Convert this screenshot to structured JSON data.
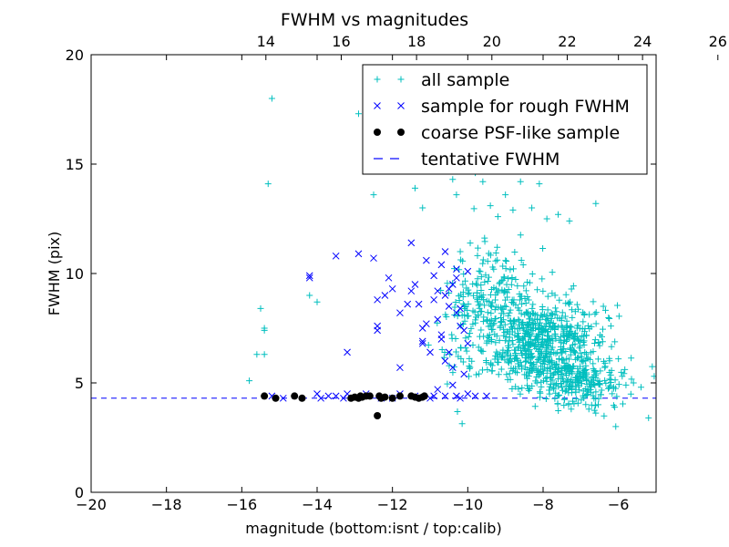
{
  "chart_data": {
    "type": "scatter",
    "title": "FWHM vs magnitudes",
    "xlabel": "magnitude (bottom:isnt / top:calib)",
    "ylabel": "FWHM (pix)",
    "xlim": [
      -20,
      -5
    ],
    "ylim": [
      0,
      20
    ],
    "xticks": [
      -20,
      -18,
      -16,
      -14,
      -12,
      -10,
      -8,
      -6
    ],
    "xtick_labels": [
      "−20",
      "−18",
      "−16",
      "−14",
      "−12",
      "−10",
      "−8",
      "−6"
    ],
    "yticks": [
      0,
      5,
      10,
      15,
      20
    ],
    "ytick_labels": [
      "0",
      "5",
      "10",
      "15",
      "20"
    ],
    "top_axis": {
      "offset": 29.36,
      "ticks": [
        14,
        16,
        18,
        20,
        22,
        24,
        26
      ],
      "tick_labels": [
        "14",
        "16",
        "18",
        "20",
        "22",
        "24",
        "26"
      ]
    },
    "grid": false,
    "legend_position": "top-right",
    "series": [
      {
        "name": "all sample",
        "marker": "plus",
        "color": "#00bfbf",
        "points": [
          [
            -15.8,
            5.1
          ],
          [
            -15.6,
            6.3
          ],
          [
            -15.5,
            8.4
          ],
          [
            -15.4,
            7.5
          ],
          [
            -15.4,
            7.4
          ],
          [
            -15.4,
            6.3
          ],
          [
            -15.3,
            14.1
          ],
          [
            -15.2,
            18.0
          ],
          [
            -14.2,
            9.0
          ],
          [
            -14.0,
            8.7
          ],
          [
            -12.9,
            17.3
          ],
          [
            -12.5,
            13.6
          ],
          [
            -11.4,
            13.9
          ],
          [
            -11.2,
            13.0
          ],
          [
            -10.4,
            14.3
          ],
          [
            -10.3,
            13.6
          ],
          [
            -10.2,
            11.0
          ],
          [
            -9.8,
            14.6
          ],
          [
            -9.6,
            14.2
          ],
          [
            -9.4,
            13.1
          ],
          [
            -9.2,
            12.6
          ],
          [
            -9.0,
            13.6
          ],
          [
            -8.8,
            12.9
          ],
          [
            -8.6,
            14.2
          ],
          [
            -8.3,
            13.0
          ],
          [
            -8.1,
            14.1
          ],
          [
            -7.9,
            12.5
          ],
          [
            -7.6,
            12.7
          ],
          [
            -7.3,
            12.4
          ],
          [
            -6.6,
            13.2
          ],
          [
            -6.4,
            8.5
          ],
          [
            -6.2,
            7.6
          ],
          [
            -5.9,
            5.3
          ],
          [
            -5.6,
            5.0
          ],
          [
            -5.4,
            4.8
          ],
          [
            -5.2,
            3.4
          ],
          [
            -5.05,
            5.3
          ],
          [
            -6.0,
            6.1
          ],
          [
            -5.8,
            4.9
          ]
        ],
        "clusters": [
          {
            "x_center": -8.0,
            "x_spread": 1.3,
            "y_center": 6.8,
            "y_spread": 1.7,
            "count": 600
          },
          {
            "x_center": -9.3,
            "x_spread": 0.9,
            "y_center": 8.9,
            "y_spread": 2.0,
            "count": 170
          },
          {
            "x_center": -7.0,
            "x_spread": 0.9,
            "y_center": 5.0,
            "y_spread": 1.0,
            "count": 220
          },
          {
            "x_center": -10.2,
            "x_spread": 0.5,
            "y_center": 7.5,
            "y_spread": 2.8,
            "count": 60
          }
        ]
      },
      {
        "name": "sample for rough FWHM",
        "marker": "x",
        "color": "#0000ff",
        "points": [
          [
            -14.2,
            9.8
          ],
          [
            -14.2,
            9.9
          ],
          [
            -13.5,
            10.8
          ],
          [
            -13.2,
            6.4
          ],
          [
            -12.9,
            10.9
          ],
          [
            -12.5,
            10.7
          ],
          [
            -12.4,
            7.6
          ],
          [
            -12.4,
            7.4
          ],
          [
            -12.4,
            8.8
          ],
          [
            -12.2,
            9.0
          ],
          [
            -12.1,
            9.8
          ],
          [
            -12.0,
            9.3
          ],
          [
            -11.8,
            8.2
          ],
          [
            -11.8,
            5.7
          ],
          [
            -11.6,
            8.6
          ],
          [
            -11.5,
            9.2
          ],
          [
            -11.4,
            9.5
          ],
          [
            -11.3,
            8.6
          ],
          [
            -11.2,
            7.5
          ],
          [
            -11.1,
            10.6
          ],
          [
            -11.2,
            6.9
          ],
          [
            -11.2,
            6.8
          ],
          [
            -11.0,
            6.4
          ],
          [
            -10.9,
            9.9
          ],
          [
            -10.9,
            8.8
          ],
          [
            -10.8,
            7.9
          ],
          [
            -10.8,
            4.7
          ],
          [
            -10.7,
            7.0
          ],
          [
            -10.7,
            10.4
          ],
          [
            -10.6,
            9.0
          ],
          [
            -10.5,
            8.5
          ],
          [
            -10.6,
            11.0
          ],
          [
            -10.5,
            6.4
          ],
          [
            -10.4,
            5.7
          ],
          [
            -10.4,
            9.5
          ],
          [
            -10.3,
            9.8
          ],
          [
            -10.3,
            10.2
          ],
          [
            -10.2,
            7.6
          ],
          [
            -10.2,
            8.4
          ],
          [
            -10.1,
            7.4
          ],
          [
            -10.0,
            10.1
          ],
          [
            -10.0,
            6.8
          ],
          [
            -10.3,
            8.2
          ],
          [
            -10.5,
            9.3
          ],
          [
            -10.7,
            7.2
          ],
          [
            -10.6,
            6.0
          ],
          [
            -10.8,
            9.2
          ],
          [
            -11.1,
            7.7
          ],
          [
            -10.4,
            4.9
          ],
          [
            -10.1,
            5.4
          ],
          [
            -11.5,
            11.4
          ],
          [
            -14.0,
            4.5
          ],
          [
            -13.7,
            4.4
          ],
          [
            -13.2,
            4.5
          ],
          [
            -12.7,
            4.5
          ],
          [
            -11.8,
            4.5
          ],
          [
            -11.4,
            4.4
          ],
          [
            -10.9,
            4.4
          ],
          [
            -10.6,
            4.4
          ],
          [
            -10.3,
            4.4
          ],
          [
            -10.0,
            4.5
          ],
          [
            -9.8,
            4.4
          ],
          [
            -9.5,
            4.4
          ],
          [
            -12.3,
            4.3
          ],
          [
            -11.0,
            4.3
          ],
          [
            -10.2,
            4.3
          ],
          [
            -15.2,
            4.4
          ],
          [
            -14.9,
            4.3
          ],
          [
            -13.9,
            4.3
          ],
          [
            -13.5,
            4.4
          ],
          [
            -13.3,
            4.3
          ],
          [
            -12.0,
            4.3
          ]
        ]
      },
      {
        "name": "coarse PSF-like sample",
        "marker": "circle",
        "color": "#000000",
        "points": [
          [
            -15.4,
            4.4
          ],
          [
            -15.1,
            4.3
          ],
          [
            -14.6,
            4.4
          ],
          [
            -14.4,
            4.3
          ],
          [
            -13.1,
            4.3
          ],
          [
            -13.0,
            4.35
          ],
          [
            -12.9,
            4.3
          ],
          [
            -12.85,
            4.4
          ],
          [
            -12.8,
            4.35
          ],
          [
            -12.7,
            4.4
          ],
          [
            -12.6,
            4.4
          ],
          [
            -12.35,
            4.4
          ],
          [
            -12.3,
            4.3
          ],
          [
            -12.2,
            4.35
          ],
          [
            -12.0,
            4.3
          ],
          [
            -11.8,
            4.4
          ],
          [
            -11.5,
            4.4
          ],
          [
            -11.4,
            4.35
          ],
          [
            -11.3,
            4.3
          ],
          [
            -11.2,
            4.35
          ],
          [
            -11.15,
            4.4
          ],
          [
            -12.4,
            3.5
          ]
        ]
      },
      {
        "name": "tentative FWHM",
        "marker": "dashed-line",
        "color": "#0000ff",
        "y_constant": 4.3
      }
    ]
  }
}
